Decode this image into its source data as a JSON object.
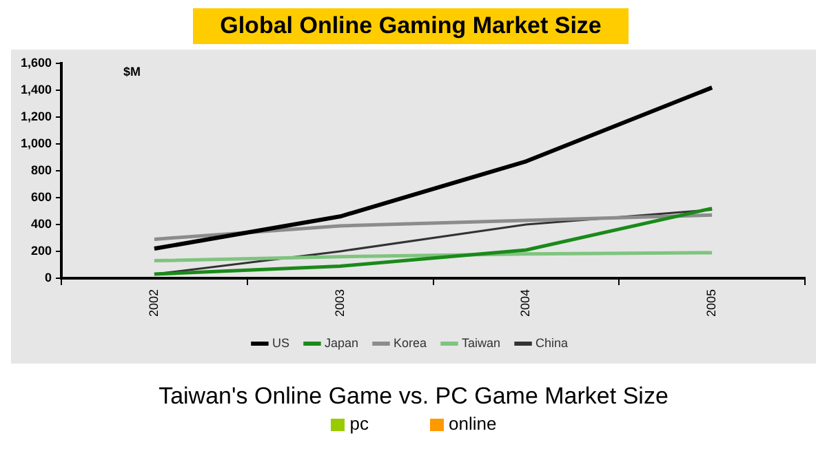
{
  "chart_data": [
    {
      "type": "line",
      "title": "Global Online Gaming Market Size",
      "ylabel": "$M",
      "categories": [
        "2002",
        "2003",
        "2004",
        "2005"
      ],
      "series": [
        {
          "name": "US",
          "color": "#000000",
          "values": [
            220,
            460,
            870,
            1420
          ]
        },
        {
          "name": "Japan",
          "color": "#1a8a1a",
          "values": [
            30,
            90,
            210,
            520
          ]
        },
        {
          "name": "Korea",
          "color": "#8c8c8c",
          "values": [
            290,
            390,
            430,
            470
          ]
        },
        {
          "name": "Taiwan",
          "color": "#7fc47f",
          "values": [
            130,
            160,
            180,
            190
          ]
        },
        {
          "name": "China",
          "color": "#333333",
          "values": [
            30,
            200,
            400,
            510
          ]
        }
      ],
      "ylim": [
        0,
        1600
      ],
      "yticks": [
        0,
        200,
        400,
        600,
        800,
        {
          "value": 1000,
          "label": "1,000"
        },
        {
          "value": 1200,
          "label": "1,200"
        },
        {
          "value": 1400,
          "label": "1,400"
        },
        {
          "value": 1600,
          "label": "1,600"
        }
      ],
      "grid": false,
      "legend": "bottom",
      "marker": "none",
      "line_style": "solid"
    },
    {
      "type": "other",
      "title": "Taiwan's Online Game vs. PC Game Market Size",
      "legend": "top",
      "series": [
        {
          "name": "pc",
          "color": "#99cc00"
        },
        {
          "name": "online",
          "color": "#ff9900"
        }
      ]
    }
  ]
}
